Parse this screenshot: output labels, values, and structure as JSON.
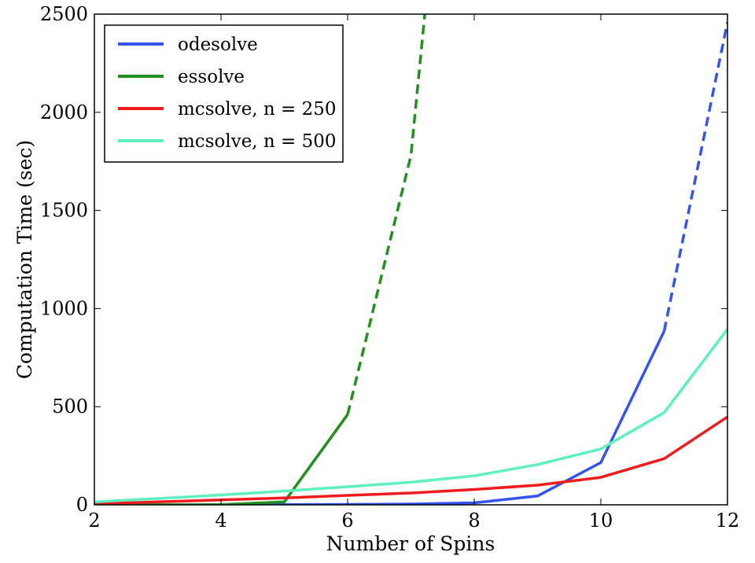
{
  "chart_data": {
    "type": "line",
    "xlabel": "Number of Spins",
    "ylabel": "Computation Time (sec)",
    "xlim": [
      2,
      12
    ],
    "ylim": [
      0,
      2500
    ],
    "xticks": [
      2,
      4,
      6,
      8,
      10,
      12
    ],
    "yticks": [
      0,
      500,
      1000,
      1500,
      2000,
      2500
    ],
    "grid": false,
    "legend_position": "top-left",
    "series": [
      {
        "name": "odesolve",
        "color": "#3355ee",
        "solid": [
          [
            2,
            0
          ],
          [
            3,
            0
          ],
          [
            4,
            0
          ],
          [
            5,
            1
          ],
          [
            6,
            2
          ],
          [
            7,
            4
          ],
          [
            8,
            10
          ],
          [
            9,
            45
          ],
          [
            10,
            215
          ],
          [
            11,
            885
          ]
        ],
        "dashed": [
          [
            11,
            885
          ],
          [
            12,
            2460
          ]
        ]
      },
      {
        "name": "essolve",
        "color": "#22901f",
        "solid": [
          [
            2,
            0
          ],
          [
            3,
            0
          ],
          [
            4,
            1
          ],
          [
            5,
            15
          ],
          [
            6,
            460
          ]
        ],
        "dashed": [
          [
            6,
            460
          ],
          [
            7,
            1780
          ],
          [
            7.22,
            2500
          ]
        ]
      },
      {
        "name": "mcsolve, n = 250",
        "color": "#ee1c1c",
        "solid": [
          [
            2,
            5
          ],
          [
            3,
            15
          ],
          [
            4,
            25
          ],
          [
            5,
            35
          ],
          [
            6,
            48
          ],
          [
            7,
            60
          ],
          [
            8,
            78
          ],
          [
            9,
            100
          ],
          [
            10,
            140
          ],
          [
            11,
            235
          ],
          [
            12,
            448
          ]
        ],
        "dashed": []
      },
      {
        "name": "mcsolve, n = 500",
        "color": "#5ff0bf",
        "solid": [
          [
            2,
            15
          ],
          [
            3,
            32
          ],
          [
            4,
            50
          ],
          [
            5,
            70
          ],
          [
            6,
            92
          ],
          [
            7,
            115
          ],
          [
            8,
            148
          ],
          [
            9,
            205
          ],
          [
            10,
            285
          ],
          [
            11,
            470
          ],
          [
            12,
            895
          ]
        ],
        "dashed": []
      }
    ]
  }
}
